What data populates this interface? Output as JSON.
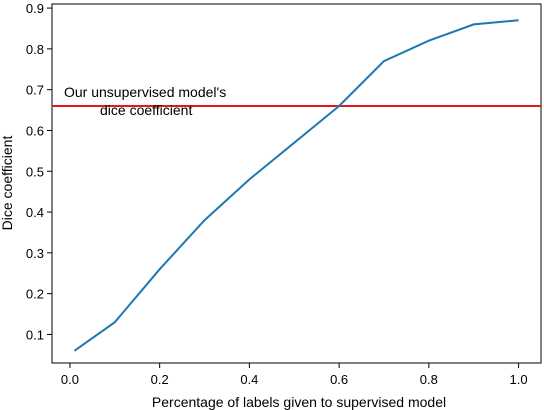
{
  "chart_data": {
    "type": "line",
    "title": "",
    "xlabel": "Percentage of labels given to supervised model",
    "ylabel": "Dice coefficient",
    "xlim": [
      -0.04,
      1.05
    ],
    "ylim": [
      0.03,
      0.91
    ],
    "xticks": [
      "0.0",
      "0.2",
      "0.4",
      "0.6",
      "0.8",
      "1.0"
    ],
    "yticks": [
      "0.1",
      "0.2",
      "0.3",
      "0.4",
      "0.5",
      "0.6",
      "0.7",
      "0.8",
      "0.9"
    ],
    "grid": false,
    "series": [
      {
        "color": "#1f77b4",
        "x": [
          0.01,
          0.1,
          0.2,
          0.3,
          0.4,
          0.5,
          0.6,
          0.7,
          0.8,
          0.9,
          1.0
        ],
        "y": [
          0.06,
          0.13,
          0.26,
          0.38,
          0.48,
          0.57,
          0.66,
          0.77,
          0.82,
          0.86,
          0.87
        ]
      }
    ],
    "reference_line": {
      "y": 0.66,
      "color": "#e31a1c",
      "annotation": [
        "Our unsupervised model's",
        "dice coefficient"
      ]
    }
  }
}
